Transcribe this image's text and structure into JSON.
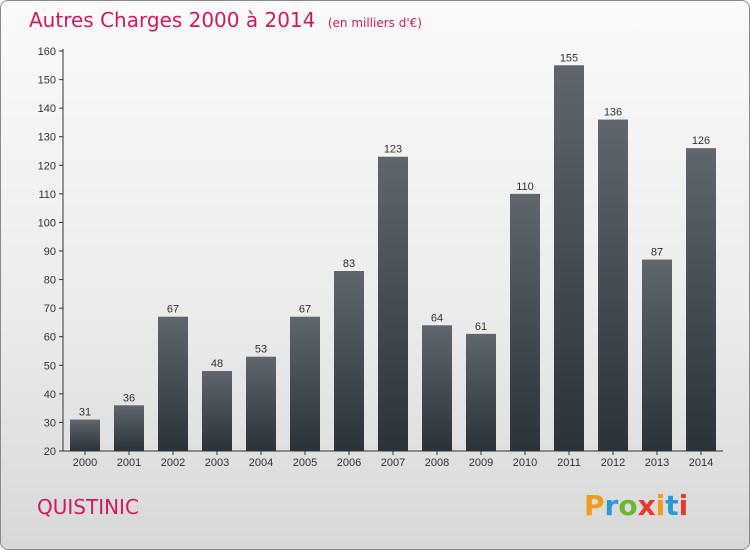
{
  "header": {
    "title": "Autres Charges 2000 à 2014",
    "subtitle": "(en milliers d'€)"
  },
  "footer": {
    "commune": "QUISTINIC",
    "logo_text": "Proxiti",
    "logo_colors": [
      "#f39a1e",
      "#2a9ad6",
      "#6bb82e",
      "#e63a2e",
      "#f39a1e",
      "#2a9ad6",
      "#e63a2e"
    ]
  },
  "colors": {
    "accent": "#d21860",
    "bar_top": "#5f666d",
    "bar_bottom": "#2b3238",
    "axis": "#333333"
  },
  "chart_data": {
    "type": "bar",
    "title": "Autres Charges 2000 à 2014",
    "subtitle": "(en milliers d'€)",
    "categories": [
      "2000",
      "2001",
      "2002",
      "2003",
      "2004",
      "2005",
      "2006",
      "2007",
      "2008",
      "2009",
      "2010",
      "2011",
      "2012",
      "2013",
      "2014"
    ],
    "values": [
      31,
      36,
      67,
      48,
      53,
      67,
      83,
      123,
      64,
      61,
      110,
      155,
      136,
      87,
      126
    ],
    "ylim": [
      20,
      160
    ],
    "yticks": [
      20,
      30,
      40,
      50,
      60,
      70,
      80,
      90,
      100,
      110,
      120,
      130,
      140,
      150,
      160
    ],
    "xlabel": "",
    "ylabel": "",
    "grid": false,
    "data_labels": true
  }
}
